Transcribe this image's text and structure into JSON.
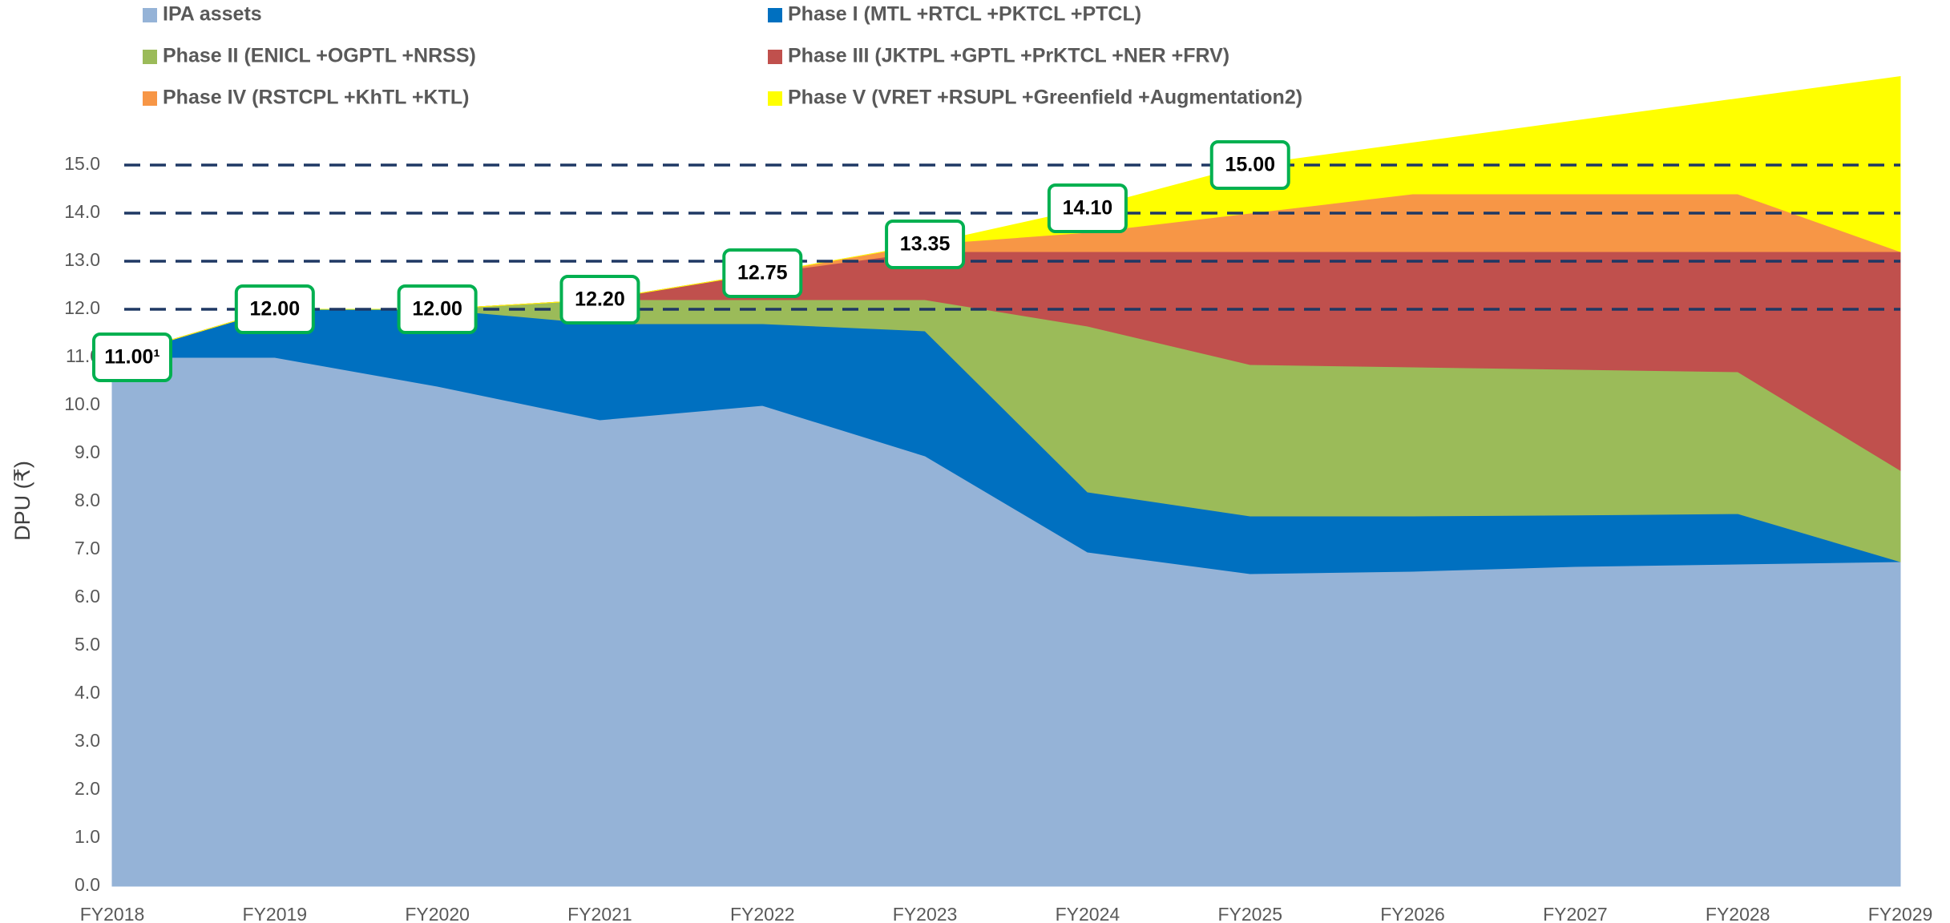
{
  "chart_data": {
    "type": "stacked_area",
    "y_label": "DPU (₹)",
    "categories": [
      "FY2018",
      "FY2019",
      "FY2020",
      "FY2021",
      "FY2022",
      "FY2023",
      "FY2024",
      "FY2025",
      "FY2026",
      "FY2027",
      "FY2028",
      "FY2029"
    ],
    "series": [
      {
        "name": "IPA assets",
        "color": "#95b3d7",
        "values": [
          11.0,
          11.0,
          10.4,
          9.7,
          10.0,
          8.95,
          6.95,
          6.5,
          6.55,
          6.65,
          6.7,
          6.75
        ]
      },
      {
        "name": "Phase I (MTL +RTCL +PKTCL +PTCL)",
        "color": "#0070c0",
        "values": [
          0,
          1.0,
          1.6,
          2.0,
          1.7,
          2.6,
          1.25,
          1.2,
          1.15,
          1.07,
          1.05,
          0
        ]
      },
      {
        "name": "Phase II (ENICL +OGPTL +NRSS)",
        "color": "#9bbb59",
        "values": [
          0,
          0,
          0,
          0.5,
          0.5,
          0.65,
          3.45,
          3.15,
          3.1,
          3.03,
          2.95,
          1.9
        ]
      },
      {
        "name": "Phase III (JKTPL +GPTL +PrKTCL +NER +FRV)",
        "color": "#c0504d",
        "values": [
          0,
          0,
          0,
          0,
          0.55,
          1.0,
          1.55,
          2.35,
          2.4,
          2.45,
          2.5,
          4.55
        ]
      },
      {
        "name": "Phase IV (RSTCPL +KhTL +KTL)",
        "color": "#f79646",
        "values": [
          0,
          0,
          0,
          0,
          0,
          0.15,
          0.4,
          0.8,
          1.2,
          1.2,
          1.2,
          0
        ]
      },
      {
        "name": "Phase V (VRET +RSUPL +Greenfield +Augmentation2)",
        "color": "#ffff00",
        "values": [
          0,
          0,
          0,
          0,
          0,
          0,
          0.5,
          1.0,
          1.06,
          1.52,
          1.98,
          3.64
        ]
      }
    ],
    "annotations": [
      {
        "value": 11.0,
        "label": "11.00¹"
      },
      {
        "value": 12.0,
        "label": "12.00"
      },
      {
        "value": 12.0,
        "label": "12.00"
      },
      {
        "value": 12.2,
        "label": "12.20"
      },
      {
        "value": 12.75,
        "label": "12.75"
      },
      {
        "value": 13.35,
        "label": "13.35"
      },
      {
        "value": 14.1,
        "label": "14.10"
      },
      {
        "value": 15.0,
        "label": "15.00"
      }
    ],
    "ylim": [
      0,
      18.4
    ],
    "yticks": [
      {
        "value": 0,
        "label": "0.0"
      },
      {
        "value": 1,
        "label": "1.0"
      },
      {
        "value": 2,
        "label": "2.0"
      },
      {
        "value": 3,
        "label": "3.0"
      },
      {
        "value": 4,
        "label": "4.0"
      },
      {
        "value": 5,
        "label": "5.0"
      },
      {
        "value": 6,
        "label": "6.0"
      },
      {
        "value": 7,
        "label": "7.0"
      },
      {
        "value": 8,
        "label": "8.0"
      },
      {
        "value": 9,
        "label": "9.0"
      },
      {
        "value": 10,
        "label": "10.0"
      },
      {
        "value": 11,
        "label": "11.0"
      },
      {
        "value": 12,
        "label": "12.0"
      },
      {
        "value": 13,
        "label": "13.0"
      },
      {
        "value": 14,
        "label": "14.0"
      },
      {
        "value": 15,
        "label": "15.0"
      }
    ],
    "dashed_lines": [
      12,
      13,
      14,
      15
    ],
    "grid": false
  }
}
